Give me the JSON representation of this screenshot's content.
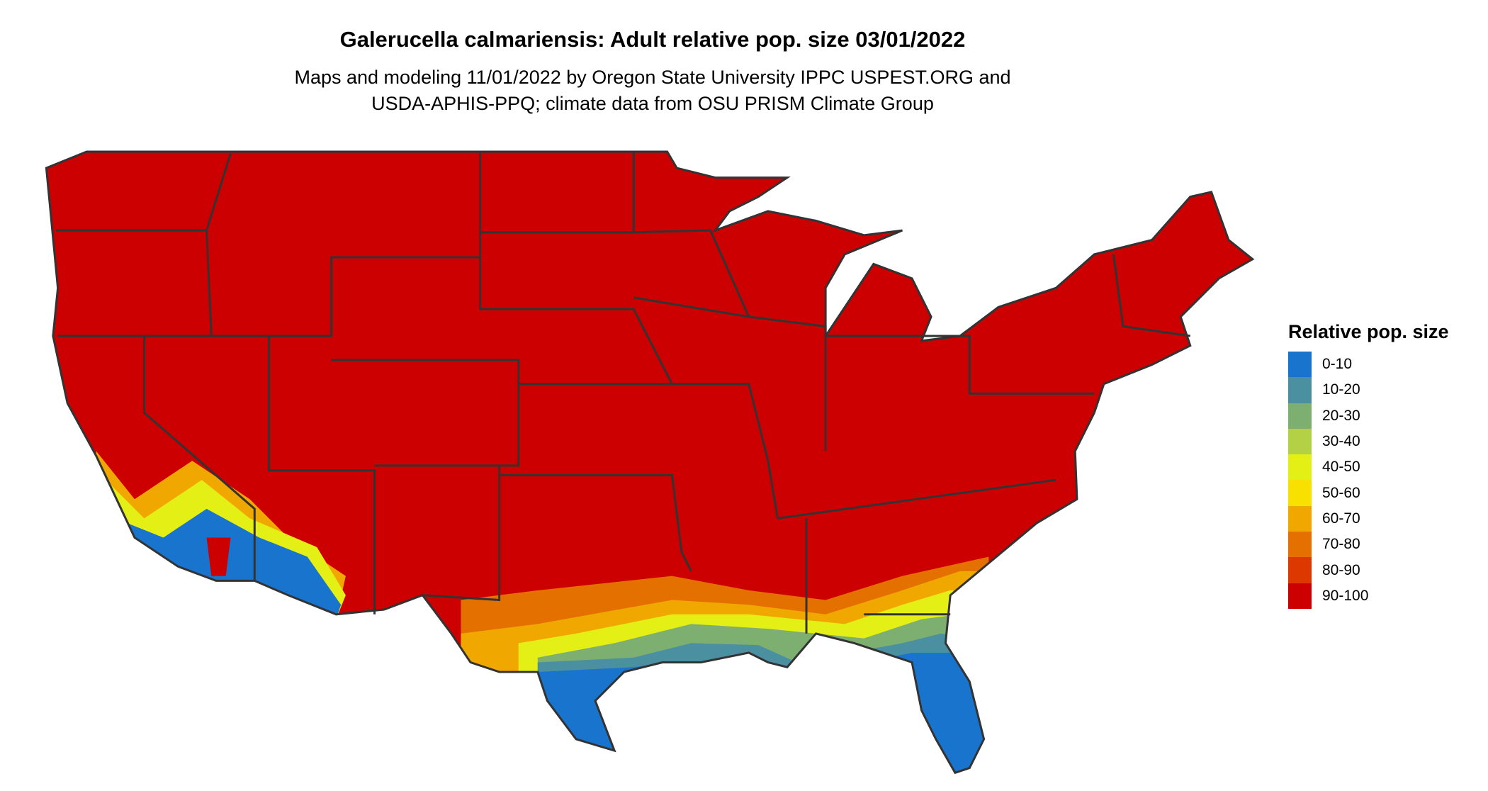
{
  "title": "Galerucella calmariensis: Adult relative pop. size 03/01/2022",
  "subtitle_lines": [
    "Maps and modeling 11/01/2022 by Oregon State University IPPC USPEST.ORG and",
    "USDA-APHIS-PPQ; climate data from OSU PRISM Climate Group"
  ],
  "legend": {
    "title": "Relative pop. size",
    "items": [
      {
        "label": "0-10",
        "color": "#1874CD"
      },
      {
        "label": "10-20",
        "color": "#4A90A0"
      },
      {
        "label": "20-30",
        "color": "#7DB070"
      },
      {
        "label": "30-40",
        "color": "#B4D044"
      },
      {
        "label": "40-50",
        "color": "#E4F015"
      },
      {
        "label": "50-60",
        "color": "#F8E000"
      },
      {
        "label": "60-70",
        "color": "#F0A800"
      },
      {
        "label": "70-80",
        "color": "#E47000"
      },
      {
        "label": "80-90",
        "color": "#DC3800"
      },
      {
        "label": "90-100",
        "color": "#CC0000"
      }
    ]
  },
  "map": {
    "region": "Contiguous United States",
    "dominant_class": "90-100",
    "border_color": "#333333"
  }
}
